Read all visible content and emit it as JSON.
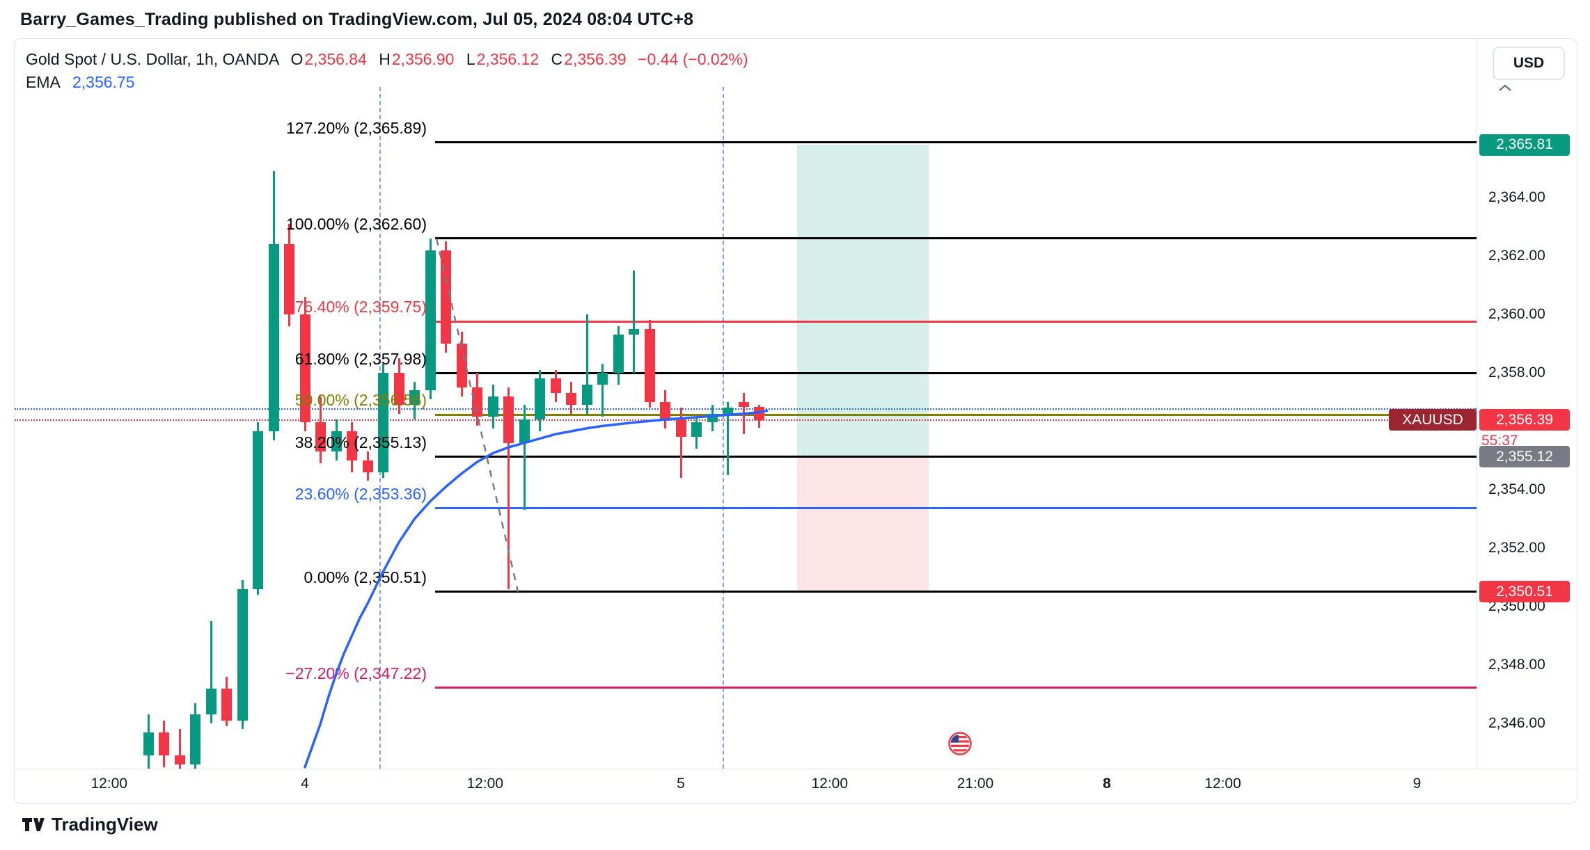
{
  "header": {
    "publish_line": "Barry_Games_Trading published on TradingView.com, Jul 05, 2024 08:04 UTC+8"
  },
  "toolbar": {
    "currency_label": "USD"
  },
  "legend": {
    "title": "Gold Spot / U.S. Dollar, 1h, OANDA",
    "ohlc": {
      "o_key": "O",
      "o": "2,356.84",
      "h_key": "H",
      "h": "2,356.90",
      "l_key": "L",
      "l": "2,356.12",
      "c_key": "C",
      "c": "2,356.39",
      "change": "−0.44 (−0.02%)"
    },
    "ema_label": "EMA",
    "ema_value": "2,356.75"
  },
  "footer": {
    "brand": "TradingView"
  },
  "price_scale": {
    "badges": [
      {
        "role": "target",
        "label": "2,365.81",
        "price": 2365.81,
        "bg": "#089981"
      },
      {
        "role": "entry",
        "label": "2,355.12",
        "price": 2355.12,
        "bg": "#787b86"
      },
      {
        "role": "stop",
        "label": "2,350.51",
        "price": 2350.51,
        "bg": "#f23645"
      }
    ],
    "last_price_badge": {
      "symbol": "XAUUSD",
      "symbol_bg": "#9b2531",
      "label": "2,356.39",
      "price": 2356.39,
      "bg": "#f23645",
      "countdown": "55:37"
    }
  },
  "chart_data": {
    "type": "candlestick",
    "symbol": "XAUUSD",
    "description": "Gold Spot / U.S. Dollar",
    "interval": "1h",
    "exchange": "OANDA",
    "grid": false,
    "ylim": [
      2344.45,
      2369.43
    ],
    "last_bar": {
      "open": 2356.84,
      "high": 2356.9,
      "low": 2356.12,
      "close": 2356.39,
      "change": -0.44,
      "change_pct": -0.02
    },
    "colors": {
      "up": "#089981",
      "down": "#f23645",
      "ema": "#2962ff",
      "vline": "#2962ff",
      "trendline": "#787b86"
    },
    "candle_columns": [
      "time",
      "open",
      "high",
      "low",
      "close"
    ],
    "candles": [
      [
        "Jul 3 14:00",
        2344.9,
        2346.3,
        2344.4,
        2345.7
      ],
      [
        "Jul 3 15:00",
        2345.7,
        2346.1,
        2344.5,
        2344.9
      ],
      [
        "Jul 3 16:00",
        2344.9,
        2345.8,
        2344.2,
        2344.6
      ],
      [
        "Jul 3 17:00",
        2344.6,
        2346.7,
        2344.4,
        2346.3
      ],
      [
        "Jul 3 18:00",
        2346.3,
        2349.5,
        2346.0,
        2347.2
      ],
      [
        "Jul 3 19:00",
        2347.2,
        2347.6,
        2345.9,
        2346.1
      ],
      [
        "Jul 3 20:00",
        2346.1,
        2350.9,
        2345.8,
        2350.6
      ],
      [
        "Jul 3 21:00",
        2350.6,
        2356.3,
        2350.4,
        2356.0
      ],
      [
        "Jul 3 22:00",
        2356.0,
        2364.9,
        2355.7,
        2362.4
      ],
      [
        "Jul 3 23:00",
        2362.4,
        2363.1,
        2359.6,
        2360.0
      ],
      [
        "Jul 4 00:00",
        2360.0,
        2360.6,
        2356.0,
        2356.3
      ],
      [
        "Jul 4 01:00",
        2356.3,
        2357.2,
        2354.9,
        2355.3
      ],
      [
        "Jul 4 02:00",
        2355.3,
        2356.4,
        2355.0,
        2356.0
      ],
      [
        "Jul 4 03:00",
        2356.0,
        2356.3,
        2354.6,
        2355.0
      ],
      [
        "Jul 4 04:00",
        2355.0,
        2355.3,
        2354.3,
        2354.6
      ],
      [
        "Jul 4 05:00",
        2354.6,
        2358.3,
        2354.4,
        2358.0
      ],
      [
        "Jul 4 06:00",
        2358.0,
        2358.5,
        2356.6,
        2356.9
      ],
      [
        "Jul 4 07:00",
        2356.9,
        2357.7,
        2356.4,
        2357.4
      ],
      [
        "Jul 4 08:00",
        2357.4,
        2362.6,
        2357.1,
        2362.2
      ],
      [
        "Jul 4 09:00",
        2362.2,
        2362.5,
        2358.7,
        2359.0
      ],
      [
        "Jul 4 10:00",
        2359.0,
        2359.4,
        2357.2,
        2357.5
      ],
      [
        "Jul 4 11:00",
        2357.5,
        2358.0,
        2356.2,
        2356.5
      ],
      [
        "Jul 4 12:00",
        2356.5,
        2357.6,
        2356.1,
        2357.2
      ],
      [
        "Jul 4 13:00",
        2357.2,
        2357.5,
        2350.6,
        2355.6
      ],
      [
        "Jul 4 14:00",
        2355.6,
        2356.9,
        2353.3,
        2356.4
      ],
      [
        "Jul 4 15:00",
        2356.4,
        2358.1,
        2356.0,
        2357.8
      ],
      [
        "Jul 4 16:00",
        2357.8,
        2358.1,
        2357.0,
        2357.3
      ],
      [
        "Jul 4 17:00",
        2357.3,
        2357.7,
        2356.6,
        2356.9
      ],
      [
        "Jul 4 18:00",
        2356.9,
        2360.0,
        2356.6,
        2357.6
      ],
      [
        "Jul 4 19:00",
        2357.6,
        2358.3,
        2356.5,
        2358.0
      ],
      [
        "Jul 4 20:00",
        2358.0,
        2359.6,
        2357.6,
        2359.3
      ],
      [
        "Jul 4 21:00",
        2359.3,
        2361.5,
        2358.0,
        2359.5
      ],
      [
        "Jul 4 22:00",
        2359.5,
        2359.8,
        2356.8,
        2357.0
      ],
      [
        "Jul 4 23:00",
        2357.0,
        2357.4,
        2356.1,
        2356.4
      ],
      [
        "Jul 5 00:00",
        2356.4,
        2356.8,
        2354.4,
        2355.8
      ],
      [
        "Jul 5 01:00",
        2355.8,
        2356.5,
        2355.4,
        2356.3
      ],
      [
        "Jul 5 02:00",
        2356.3,
        2356.9,
        2356.0,
        2356.6
      ],
      [
        "Jul 5 03:00",
        2356.6,
        2357.0,
        2354.5,
        2356.8
      ],
      [
        "Jul 5 04:00",
        2357.0,
        2357.3,
        2355.9,
        2356.84
      ],
      [
        "Jul 5 05:00",
        2356.84,
        2356.9,
        2356.12,
        2356.39
      ]
    ],
    "ema": {
      "label": "EMA",
      "value": 2356.75,
      "points": [
        [
          10,
          2344.5
        ],
        [
          11,
          2346.0
        ],
        [
          11.5,
          2346.9
        ],
        [
          12,
          2347.7
        ],
        [
          12.5,
          2348.4
        ],
        [
          13,
          2349.0
        ],
        [
          13.5,
          2349.6
        ],
        [
          14,
          2350.1
        ],
        [
          15,
          2351.2
        ],
        [
          16,
          2352.2
        ],
        [
          17,
          2353.0
        ],
        [
          18,
          2353.6
        ],
        [
          19,
          2354.1
        ],
        [
          20,
          2354.55
        ],
        [
          21,
          2354.95
        ],
        [
          22,
          2355.25
        ],
        [
          23,
          2355.45
        ],
        [
          24,
          2355.6
        ],
        [
          25,
          2355.75
        ],
        [
          26,
          2355.9
        ],
        [
          27,
          2356.0
        ],
        [
          28,
          2356.1
        ],
        [
          29,
          2356.18
        ],
        [
          30,
          2356.24
        ],
        [
          31,
          2356.3
        ],
        [
          32,
          2356.35
        ],
        [
          33,
          2356.4
        ],
        [
          34,
          2356.44
        ],
        [
          35,
          2356.48
        ],
        [
          36,
          2356.52
        ],
        [
          37,
          2356.56
        ],
        [
          38,
          2356.6
        ],
        [
          39,
          2356.65
        ],
        [
          39.5,
          2356.7
        ]
      ]
    },
    "fib_retracement": {
      "start_bar": 18.3,
      "levels": [
        {
          "level": "127.20%",
          "price": 2365.89,
          "label": "127.20% (2,365.89)",
          "color": "#000000"
        },
        {
          "level": "100.00%",
          "price": 2362.6,
          "label": "100.00% (2,362.60)",
          "color": "#000000"
        },
        {
          "level": "76.40%",
          "price": 2359.75,
          "label": "76.40% (2,359.75)",
          "color": "#f23645"
        },
        {
          "level": "61.80%",
          "price": 2357.98,
          "label": "61.80% (2,357.98)",
          "color": "#000000"
        },
        {
          "level": "50.00%",
          "price": 2356.56,
          "label": "50.00% (2,356.56)",
          "color": "#808000"
        },
        {
          "level": "38.20%",
          "price": 2355.13,
          "label": "38.20% (2,355.13)",
          "color": "#000000"
        },
        {
          "level": "23.60%",
          "price": 2353.36,
          "label": "23.60% (2,353.36)",
          "color": "#2962ff"
        },
        {
          "level": "0.00%",
          "price": 2350.51,
          "label": "0.00% (2,350.51)",
          "color": "#000000"
        },
        {
          "level": "-27.20%",
          "price": 2347.22,
          "label": "−27.20% (2,347.22)",
          "color": "#d81b60"
        }
      ]
    },
    "price_lines": [
      {
        "name": "last-price-dotted-line",
        "price": 2356.39,
        "color": "#f23645",
        "style": "dotted"
      },
      {
        "name": "ema-value-dotted-line",
        "price": 2356.75,
        "color": "#2962ff",
        "style": "dotted"
      }
    ],
    "long_position": {
      "entry": 2355.12,
      "target": 2365.81,
      "stop": 2350.51,
      "bar_start": 41.4,
      "bar_end": 49.8,
      "profit_fill": "rgba(8,153,129,0.16)",
      "loss_fill": "rgba(242,54,69,0.13)"
    },
    "vlines": [
      {
        "bar": 14.8
      },
      {
        "bar": 36.7
      }
    ],
    "trendline": {
      "from": {
        "bar": 18.4,
        "price": 2362.6
      },
      "to": {
        "bar": 23.6,
        "price": 2350.51
      }
    },
    "event_marker": {
      "bar": 51.8,
      "price": 2345.3,
      "icon": "us-flag-icon"
    },
    "y_ticks": [
      {
        "label": "2,364.00",
        "price": 2364
      },
      {
        "label": "2,362.00",
        "price": 2362
      },
      {
        "label": "2,360.00",
        "price": 2360
      },
      {
        "label": "2,358.00",
        "price": 2358
      },
      {
        "label": "2,354.00",
        "price": 2354
      },
      {
        "label": "2,352.00",
        "price": 2352
      },
      {
        "label": "2,350.00",
        "price": 2350
      },
      {
        "label": "2,348.00",
        "price": 2348
      },
      {
        "label": "2,346.00",
        "price": 2346
      }
    ],
    "x_ticks": [
      {
        "label": "12:00",
        "bar": -2.5,
        "bold": false
      },
      {
        "label": "4",
        "bar": 10,
        "bold": false
      },
      {
        "label": "12:00",
        "bar": 21.5,
        "bold": false
      },
      {
        "label": "5",
        "bar": 34,
        "bold": false
      },
      {
        "label": "12:00",
        "bar": 43.5,
        "bold": false
      },
      {
        "label": "21:00",
        "bar": 52.8,
        "bold": false
      },
      {
        "label": "8",
        "bar": 61.2,
        "bold": true
      },
      {
        "label": "12:00",
        "bar": 68.6,
        "bold": false
      },
      {
        "label": "9",
        "bar": 81,
        "bold": false
      }
    ]
  }
}
